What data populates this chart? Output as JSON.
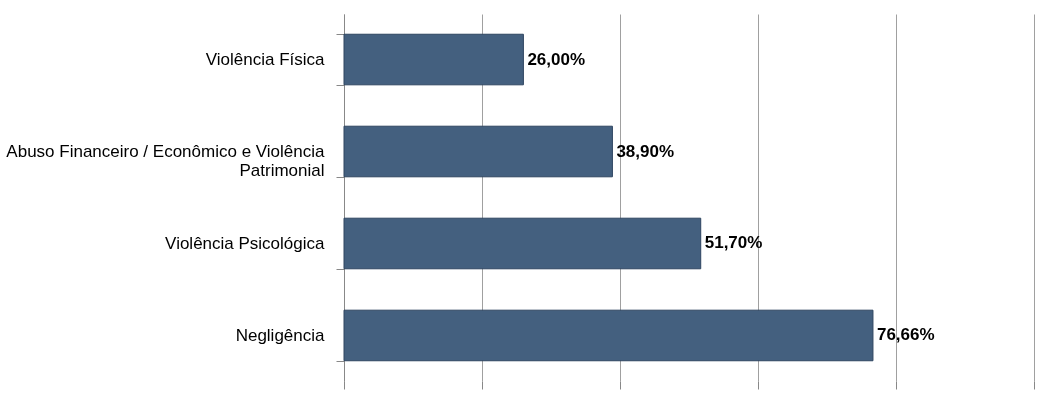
{
  "chart_data": {
    "type": "bar",
    "orientation": "horizontal",
    "categories": [
      "Violência Física",
      "Abuso Financeiro / Econômico e Violência Patrimonial",
      "Violência Psicológica",
      "Negligência"
    ],
    "values": [
      26.0,
      38.9,
      51.7,
      76.66
    ],
    "value_labels": [
      "26,00%",
      "38,90%",
      "51,70%",
      "76,66%"
    ],
    "color": "#44607f",
    "xlim": [
      0,
      100
    ],
    "xticks": [
      {
        "value": 0,
        "label": null
      },
      {
        "value": 20,
        "label": null
      },
      {
        "value": 40,
        "label": null
      },
      {
        "value": 60,
        "label": null
      },
      {
        "value": 80,
        "label": null
      },
      {
        "value": 100,
        "label": null
      }
    ],
    "grid": "x",
    "tick_labels": "y"
  }
}
